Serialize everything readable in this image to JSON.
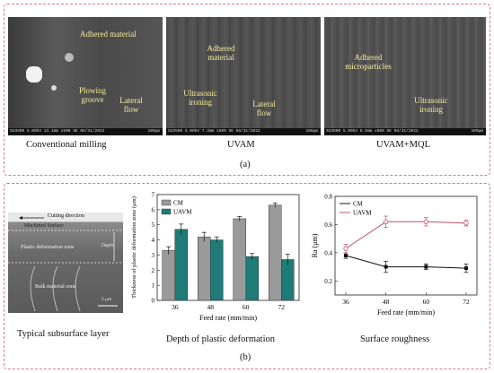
{
  "panel_a": {
    "images": [
      {
        "caption": "Conventional milling",
        "info": "SU3500 5.00kV 13.1mm x500 SE 08/31/2022",
        "scale": "100μm",
        "annotations": [
          "Adhered material",
          "Plowing groove",
          "Lateral flow"
        ]
      },
      {
        "caption": "UVAM",
        "info": "SU3500 5.00kV 7.3mm x500 SE 08/31/2022",
        "scale": "100μm",
        "annotations": [
          "Adhered material",
          "Ultrasonic ironing",
          "Lateral flow"
        ]
      },
      {
        "caption": "UVAM+MQL",
        "info": "SU3500 5.00kV 8.5mm x500 SE 08/31/2022",
        "scale": "100μm",
        "annotations": [
          "Adhered microparticles",
          "Ultrasonic ironing"
        ]
      }
    ],
    "label": "(a)"
  },
  "panel_b": {
    "label": "(b)",
    "subsurface": {
      "caption": "Typical subsurface layer",
      "cutting_direction": "Cutting direction",
      "machined_surface": "Machined Surface",
      "plastic_zone": "Plastic deformation zone",
      "depth": "Depth",
      "bulk_zone": "Bulk material zone",
      "scale": "5 μm"
    },
    "depth_chart_caption": "Depth of plastic deformation",
    "roughness_chart_caption": "Surface roughness"
  },
  "chart_data": [
    {
      "type": "bar",
      "title": "",
      "xlabel": "Feed rate (mm/min)",
      "ylabel": "Thickness of plastic deformation zone (μm)",
      "categories": [
        "36",
        "48",
        "60",
        "72"
      ],
      "series": [
        {
          "name": "CM",
          "values": [
            3.3,
            4.2,
            5.4,
            6.3
          ],
          "errors": [
            0.25,
            0.3,
            0.15,
            0.15
          ],
          "color": "#9a9a9a"
        },
        {
          "name": "UAVM",
          "values": [
            4.7,
            4.0,
            2.9,
            2.7
          ],
          "errors": [
            0.35,
            0.2,
            0.2,
            0.35
          ],
          "color": "#1f7b78"
        }
      ],
      "ylim": [
        0,
        7
      ],
      "yticks": [
        "0",
        "1",
        "2",
        "3",
        "4",
        "5",
        "6",
        "7"
      ],
      "legend": "top-left"
    },
    {
      "type": "line",
      "title": "",
      "xlabel": "Feed rate (mm/min)",
      "ylabel": "Ra (μm)",
      "x": [
        "36",
        "48",
        "60",
        "72"
      ],
      "series": [
        {
          "name": "CM",
          "values": [
            0.38,
            0.3,
            0.3,
            0.29
          ],
          "errors": [
            0.02,
            0.04,
            0.02,
            0.03
          ],
          "color": "#111111"
        },
        {
          "name": "UAVM",
          "values": [
            0.43,
            0.62,
            0.62,
            0.61
          ],
          "errors": [
            0.03,
            0.04,
            0.03,
            0.02
          ],
          "color": "#c0506a"
        }
      ],
      "ylim": [
        0.1,
        0.8
      ],
      "yticks": [
        "0.2",
        "0.4",
        "0.6",
        "0.8"
      ],
      "legend": "top-left"
    }
  ]
}
